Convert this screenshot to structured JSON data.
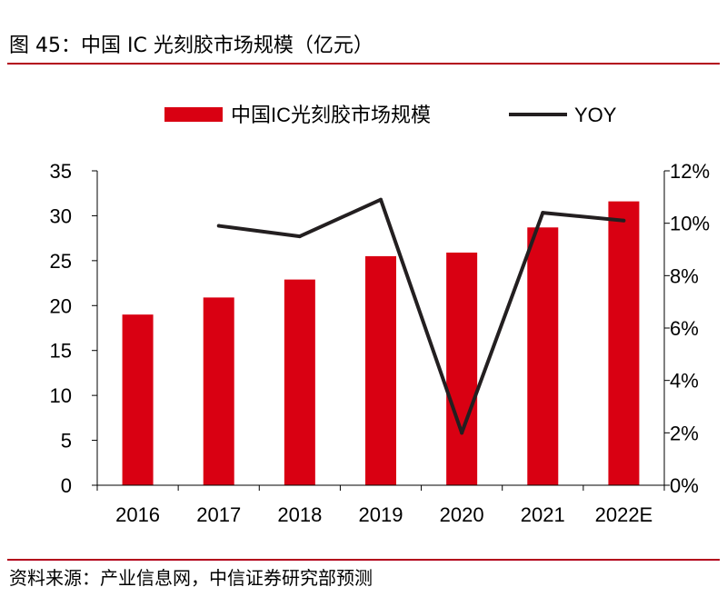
{
  "figure": {
    "title": "图 45：中国 IC 光刻胶市场规模（亿元）",
    "source": "资料来源：产业信息网，中信证券研究部预测"
  },
  "colors": {
    "bar": "#d90012",
    "line": "#231f20",
    "rule": "#b3001b",
    "axis": "#000000"
  },
  "chart_data": {
    "type": "bar",
    "categories": [
      "2016",
      "2017",
      "2018",
      "2019",
      "2020",
      "2021",
      "2022E"
    ],
    "series": [
      {
        "name": "中国IC光刻胶市场规模",
        "type": "bar",
        "axis": "left",
        "values": [
          19.0,
          20.9,
          22.9,
          25.5,
          25.9,
          28.7,
          31.6
        ]
      },
      {
        "name": "YOY",
        "type": "line",
        "axis": "right",
        "values": [
          null,
          9.9,
          9.5,
          10.9,
          2.0,
          10.4,
          10.1
        ]
      }
    ],
    "y_left": {
      "min": 0,
      "max": 35,
      "ticks": [
        "0",
        "5",
        "10",
        "15",
        "20",
        "25",
        "30",
        "35"
      ]
    },
    "y_right": {
      "min": 0,
      "max": 12,
      "ticks": [
        "0%",
        "2%",
        "4%",
        "6%",
        "8%",
        "10%",
        "12%"
      ]
    },
    "legend_position": "top-center",
    "grid": false
  }
}
